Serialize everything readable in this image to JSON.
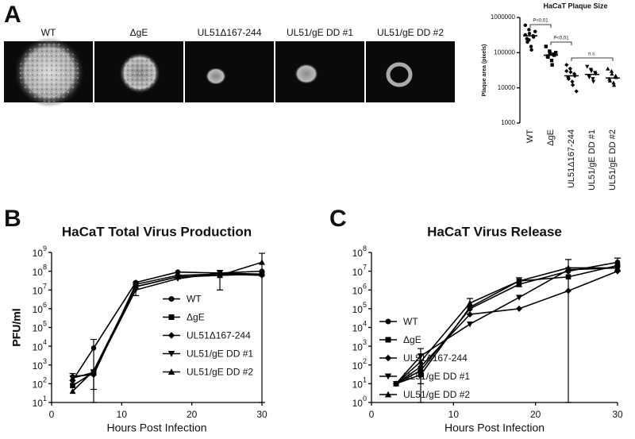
{
  "panel_labels": [
    "A",
    "B",
    "C"
  ],
  "images": {
    "labels": [
      "WT",
      "ΔgE",
      "UL51Δ167-244",
      "UL51/gE DD #1",
      "UL51/gE DD #2"
    ]
  },
  "chart_data": [
    {
      "type": "strip",
      "title": "HaCaT Plaque Size",
      "ylabel": "Plaque area (pixels)",
      "categories": [
        "WT",
        "ΔgE",
        "UL51Δ167-244",
        "UL51/gE DD #1",
        "UL51/gE DD #2"
      ],
      "markers": [
        "circle",
        "square",
        "diamond",
        "tri-down",
        "tri-up"
      ],
      "color": "#000000",
      "values": [
        [
          600000,
          450000,
          350000,
          300000,
          280000,
          250000,
          200000,
          150000,
          120000,
          400000,
          320000,
          230000
        ],
        [
          150000,
          110000,
          95000,
          90000,
          85000,
          80000,
          75000,
          60000,
          45000,
          100000
        ],
        [
          45000,
          35000,
          28000,
          25000,
          22000,
          20000,
          18000,
          15000,
          12000,
          8000,
          30000
        ],
        [
          40000,
          33000,
          30000,
          27000,
          25000,
          22000,
          20000,
          18000,
          15000
        ],
        [
          35000,
          30000,
          25000,
          22000,
          20000,
          18000,
          16000,
          14000,
          12000
        ]
      ],
      "means": [
        300000,
        85000,
        22000,
        24000,
        19000
      ],
      "annotations": [
        "P<0.01",
        "P<0.01",
        "n.s."
      ],
      "log_y": true,
      "ylim": [
        1000,
        1000000
      ],
      "yticks": [
        1000,
        10000,
        100000,
        1000000
      ]
    },
    {
      "type": "line",
      "title": "HaCaT Total Virus Production",
      "xlabel": "Hours Post Infection",
      "ylabel": "PFU/ml",
      "x": [
        3,
        6,
        12,
        18,
        24,
        30
      ],
      "xlim": [
        0,
        30
      ],
      "xticks": [
        0,
        10,
        20,
        30
      ],
      "log_y": true,
      "ylim": [
        10,
        1000000000
      ],
      "yticks": [
        {
          "value": 10,
          "label": "10^1"
        },
        {
          "value": 100,
          "label": "10^2"
        },
        {
          "value": 1000,
          "label": "10^3"
        },
        {
          "value": 10000,
          "label": "10^4"
        },
        {
          "value": 100000,
          "label": "10^5"
        },
        {
          "value": 1000000,
          "label": "10^6"
        },
        {
          "value": 10000000,
          "label": "10^7"
        },
        {
          "value": 100000000,
          "label": "10^8"
        },
        {
          "value": 1000000000,
          "label": "10^9"
        }
      ],
      "legend": "right",
      "series": [
        {
          "name": "WT",
          "color": "#000000",
          "marker": "circle",
          "values": [
            150,
            8000,
            25000000,
            90000000,
            80000000,
            100000000
          ],
          "errors": [
            null,
            15000,
            null,
            null,
            null,
            null
          ]
        },
        {
          "name": "ΔgE",
          "color": "#000000",
          "marker": "square",
          "values": [
            80,
            400,
            15000000,
            50000000,
            60000000,
            70000000
          ],
          "errors": [
            null,
            null,
            10000000,
            null,
            50000000,
            null
          ]
        },
        {
          "name": "UL51Δ167-244",
          "color": "#000000",
          "marker": "diamond",
          "values": [
            250,
            300,
            20000000,
            60000000,
            70000000,
            60000000
          ],
          "errors": [
            100,
            250,
            null,
            null,
            null,
            null
          ]
        },
        {
          "name": "UL51/gE DD #1",
          "color": "#000000",
          "marker": "tri-down",
          "values": [
            200,
            400,
            10000000,
            40000000,
            80000000,
            70000000
          ],
          "errors": [
            null,
            null,
            null,
            null,
            null,
            null
          ]
        },
        {
          "name": "UL51/gE DD #2",
          "color": "#000000",
          "marker": "tri-up",
          "values": [
            40,
            500,
            15000000,
            50000000,
            60000000,
            300000000
          ],
          "errors": [
            null,
            null,
            null,
            null,
            null,
            600000000
          ]
        }
      ]
    },
    {
      "type": "line",
      "title": "HaCaT Virus Release",
      "xlabel": "Hours Post Infection",
      "ylabel": "PFU/ml",
      "x": [
        3,
        6,
        12,
        18,
        24,
        30
      ],
      "xlim": [
        0,
        30
      ],
      "xticks": [
        0,
        10,
        20,
        30
      ],
      "log_y": true,
      "ylim": [
        1,
        100000000
      ],
      "yticks": [
        {
          "value": 1,
          "label": "10^0"
        },
        {
          "value": 10,
          "label": "10^1"
        },
        {
          "value": 100,
          "label": "10^2"
        },
        {
          "value": 1000,
          "label": "10^3"
        },
        {
          "value": 10000,
          "label": "10^4"
        },
        {
          "value": 100000,
          "label": "10^5"
        },
        {
          "value": 1000000,
          "label": "10^6"
        },
        {
          "value": 10000000,
          "label": "10^7"
        },
        {
          "value": 100000000,
          "label": "10^8"
        }
      ],
      "legend": "lower left",
      "series": [
        {
          "name": "WT",
          "color": "#000000",
          "marker": "circle",
          "values": [
            10,
            50,
            100000,
            2000000,
            10000000,
            30000000
          ],
          "errors": [
            null,
            null,
            null,
            null,
            null,
            20000000
          ]
        },
        {
          "name": "ΔgE",
          "color": "#000000",
          "marker": "square",
          "values": [
            10,
            30,
            120000,
            3000000,
            5000000,
            20000000
          ],
          "errors": [
            null,
            20,
            null,
            1500000,
            null,
            null
          ]
        },
        {
          "name": "UL51Δ167-244",
          "color": "#000000",
          "marker": "diamond",
          "values": [
            10,
            80,
            50000,
            100000,
            900000,
            10000000
          ],
          "errors": [
            null,
            null,
            null,
            null,
            null,
            null
          ]
        },
        {
          "name": "UL51/gE DD #1",
          "color": "#000000",
          "marker": "tri-down",
          "values": [
            10,
            300,
            15000,
            400000,
            12000000,
            15000000
          ],
          "errors": [
            null,
            450,
            null,
            null,
            30000000,
            null
          ]
        },
        {
          "name": "UL51/gE DD #2",
          "color": "#000000",
          "marker": "tri-up",
          "values": [
            10,
            150,
            200000,
            3000000,
            15000000,
            15000000
          ],
          "errors": [
            null,
            null,
            150000,
            null,
            null,
            null
          ]
        }
      ]
    }
  ]
}
